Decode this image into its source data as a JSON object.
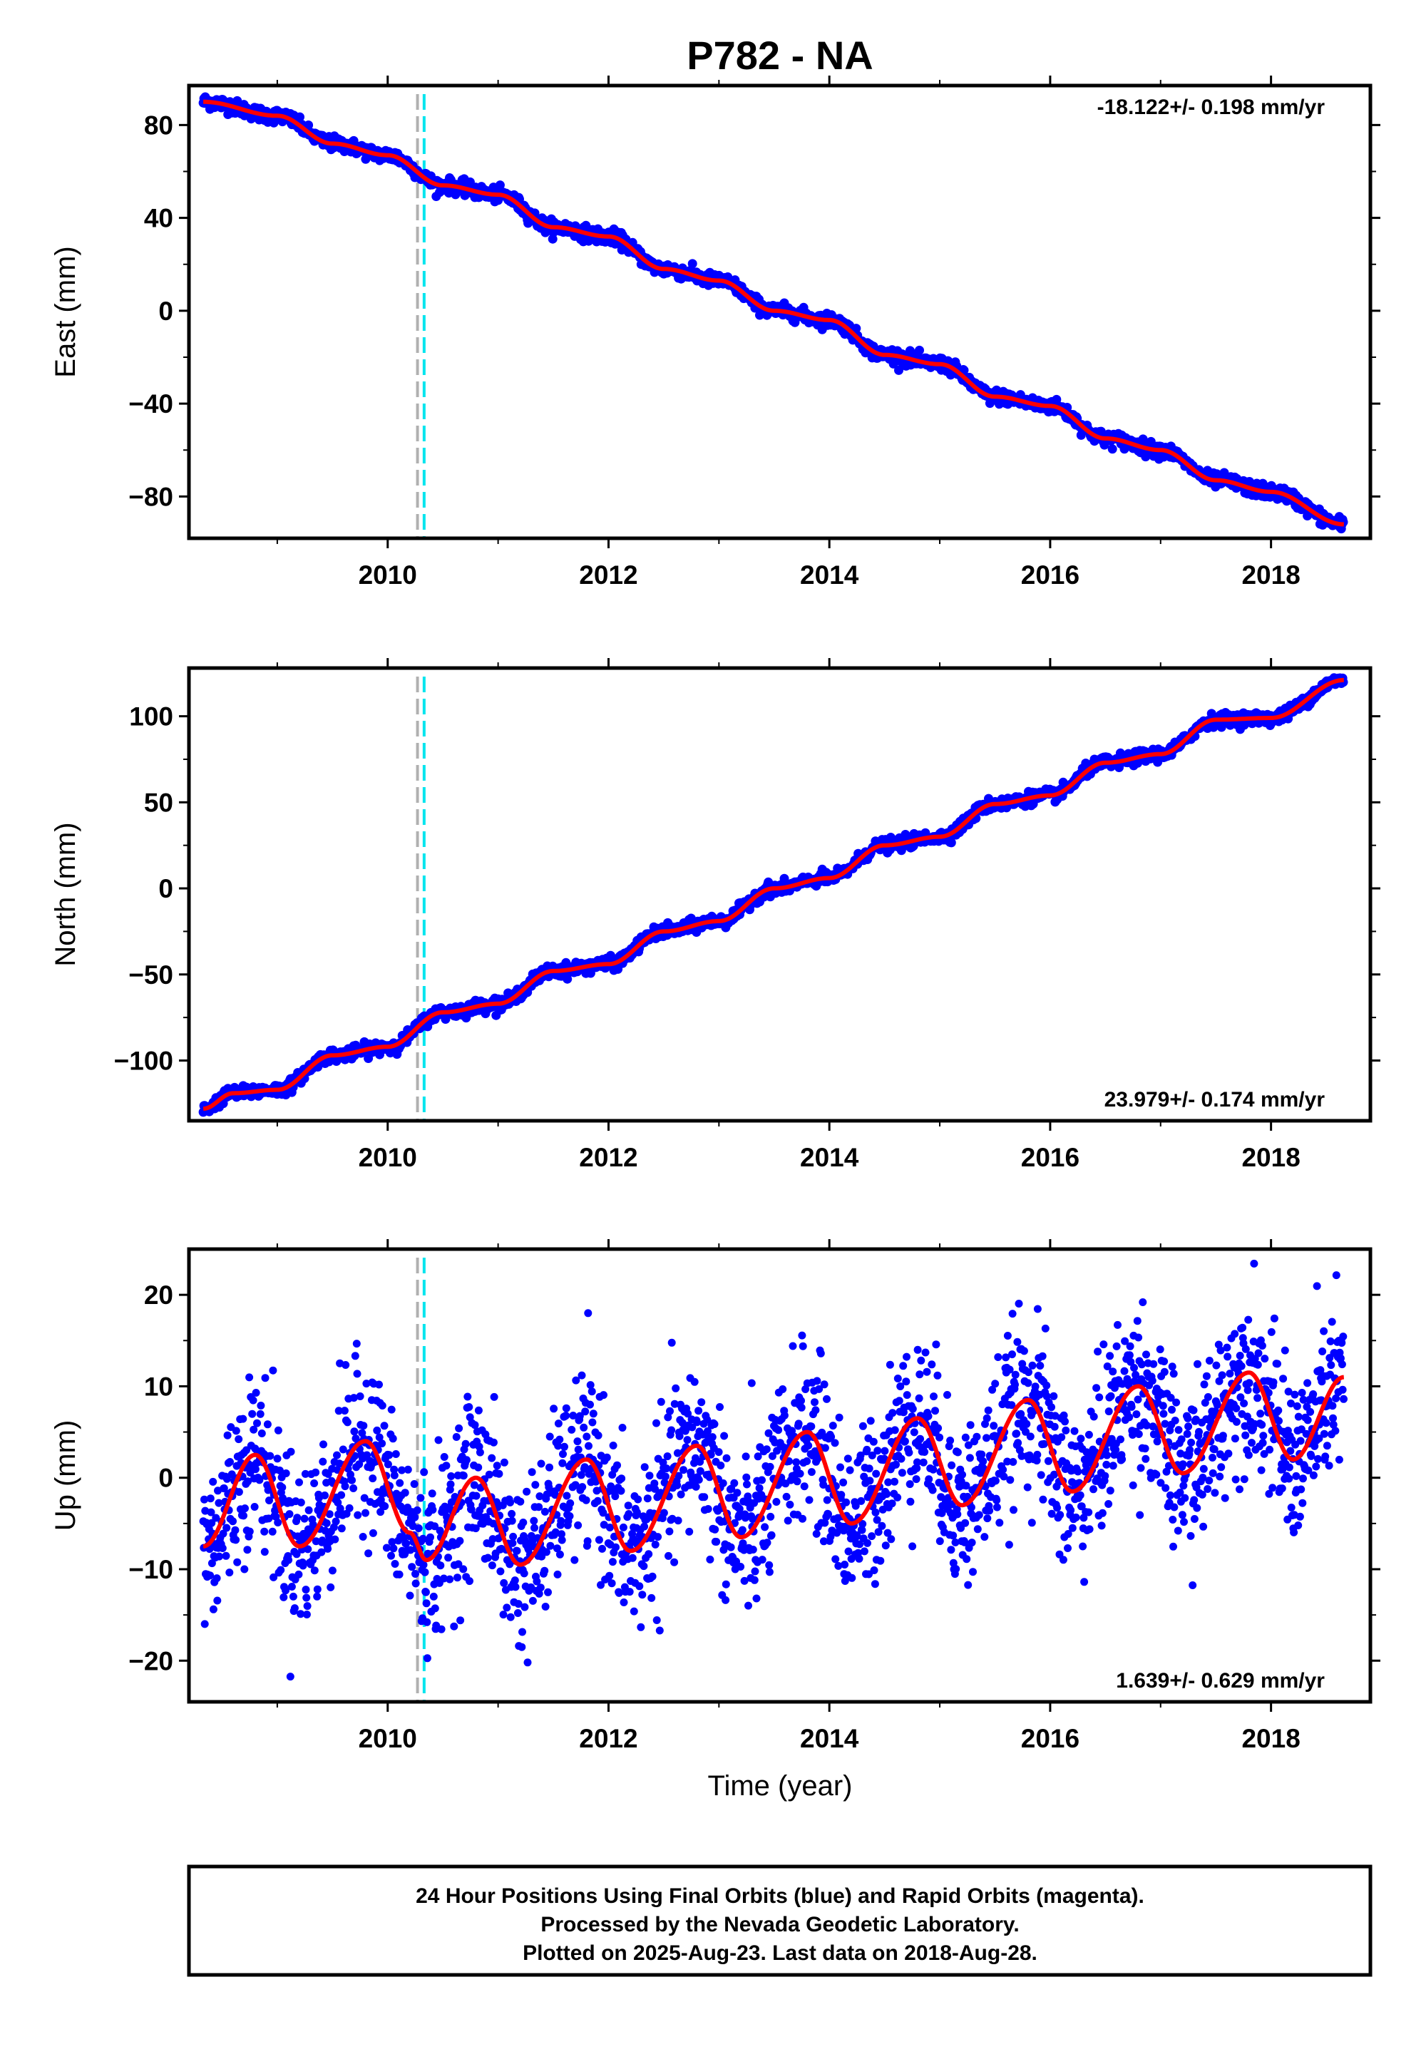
{
  "title": "P782 - NA",
  "xlabel": "Time (year)",
  "footer": {
    "line1": "24 Hour Positions Using Final Orbits (blue) and Rapid Orbits (magenta).",
    "line2": "Processed by the Nevada Geodetic Laboratory.",
    "line3": "Plotted on 2025-Aug-23. Last data on 2018-Aug-28."
  },
  "colors": {
    "final_orbits": "#0000ff",
    "model": "#ff0000",
    "antenna_change": "#00e5ee",
    "equipment_change": "#b0b0b0"
  },
  "chart_data": [
    {
      "type": "scatter",
      "component": "east",
      "ylabel": "East (mm)",
      "rate_text": "-18.122+/- 0.198 mm/yr",
      "xlim": [
        2008.2,
        2018.9
      ],
      "ylim": [
        -98,
        97
      ],
      "xticks": [
        2010,
        2012,
        2014,
        2016,
        2018
      ],
      "yticks": [
        -80,
        -40,
        0,
        40,
        80
      ],
      "ytick_labels": [
        "−80",
        "−40",
        "0",
        "40",
        "80"
      ],
      "event_lines": [
        {
          "x": 2010.27,
          "kind": "equipment"
        },
        {
          "x": 2010.33,
          "kind": "antenna"
        }
      ],
      "start": 2008.33,
      "end": 2018.66,
      "data_summary": {
        "x": [
          2008.33,
          2009.0,
          2009.5,
          2010.0,
          2010.5,
          2011.0,
          2011.5,
          2012.0,
          2012.5,
          2013.0,
          2013.5,
          2014.0,
          2014.5,
          2015.0,
          2015.5,
          2016.0,
          2016.5,
          2017.0,
          2017.5,
          2018.0,
          2018.66
        ],
        "y": [
          90,
          84,
          72,
          67,
          54,
          50,
          36,
          32,
          18,
          13,
          0,
          -4,
          -19,
          -23,
          -37,
          -41,
          -55,
          -60,
          -73,
          -78,
          -92
        ]
      },
      "noise_mm": 1.5
    },
    {
      "type": "scatter",
      "component": "north",
      "ylabel": "North (mm)",
      "rate_text": "23.979+/- 0.174 mm/yr",
      "xlim": [
        2008.2,
        2018.9
      ],
      "ylim": [
        -135,
        128
      ],
      "xticks": [
        2010,
        2012,
        2014,
        2016,
        2018
      ],
      "yticks": [
        -100,
        -50,
        0,
        50,
        100
      ],
      "ytick_labels": [
        "−100",
        "−50",
        "0",
        "50",
        "100"
      ],
      "event_lines": [
        {
          "x": 2010.27,
          "kind": "equipment"
        },
        {
          "x": 2010.33,
          "kind": "antenna"
        }
      ],
      "start": 2008.33,
      "end": 2018.66,
      "data_summary": {
        "x": [
          2008.33,
          2008.6,
          2009.0,
          2009.5,
          2010.0,
          2010.5,
          2011.0,
          2011.5,
          2012.0,
          2012.5,
          2013.0,
          2013.5,
          2014.0,
          2014.5,
          2015.0,
          2015.5,
          2016.0,
          2016.5,
          2017.0,
          2017.5,
          2018.0,
          2018.66
        ],
        "y": [
          -128,
          -119,
          -117,
          -97,
          -92,
          -72,
          -67,
          -48,
          -44,
          -25,
          -19,
          0,
          6,
          25,
          30,
          49,
          54,
          73,
          78,
          98,
          99,
          121
        ]
      },
      "noise_mm": 1.8
    },
    {
      "type": "scatter",
      "component": "up",
      "ylabel": "Up (mm)",
      "rate_text": "1.639+/- 0.629 mm/yr",
      "xlim": [
        2008.2,
        2018.9
      ],
      "ylim": [
        -24.5,
        25
      ],
      "xticks": [
        2010,
        2012,
        2014,
        2016,
        2018
      ],
      "yticks": [
        -20,
        -10,
        0,
        10,
        20
      ],
      "ytick_labels": [
        "−20",
        "−10",
        "0",
        "10",
        "20"
      ],
      "event_lines": [
        {
          "x": 2010.27,
          "kind": "equipment"
        },
        {
          "x": 2010.33,
          "kind": "antenna"
        }
      ],
      "start": 2008.33,
      "end": 2018.66,
      "model_peaks": {
        "x": [
          2008.33,
          2008.8,
          2009.2,
          2009.8,
          2010.2,
          2010.35,
          2010.8,
          2011.2,
          2011.8,
          2012.2,
          2012.8,
          2013.2,
          2013.8,
          2014.2,
          2014.8,
          2015.2,
          2015.8,
          2016.2,
          2016.8,
          2017.2,
          2017.8,
          2018.2,
          2018.66
        ],
        "y": [
          -7.5,
          2.5,
          -7.5,
          4.0,
          -6.0,
          -9.0,
          0.0,
          -9.5,
          2.0,
          -8.0,
          3.5,
          -6.5,
          5.0,
          -5.0,
          6.5,
          -3.0,
          8.5,
          -1.5,
          10.0,
          0.5,
          11.5,
          2.0,
          11.0
        ]
      },
      "noise_mm": 4.5
    }
  ]
}
